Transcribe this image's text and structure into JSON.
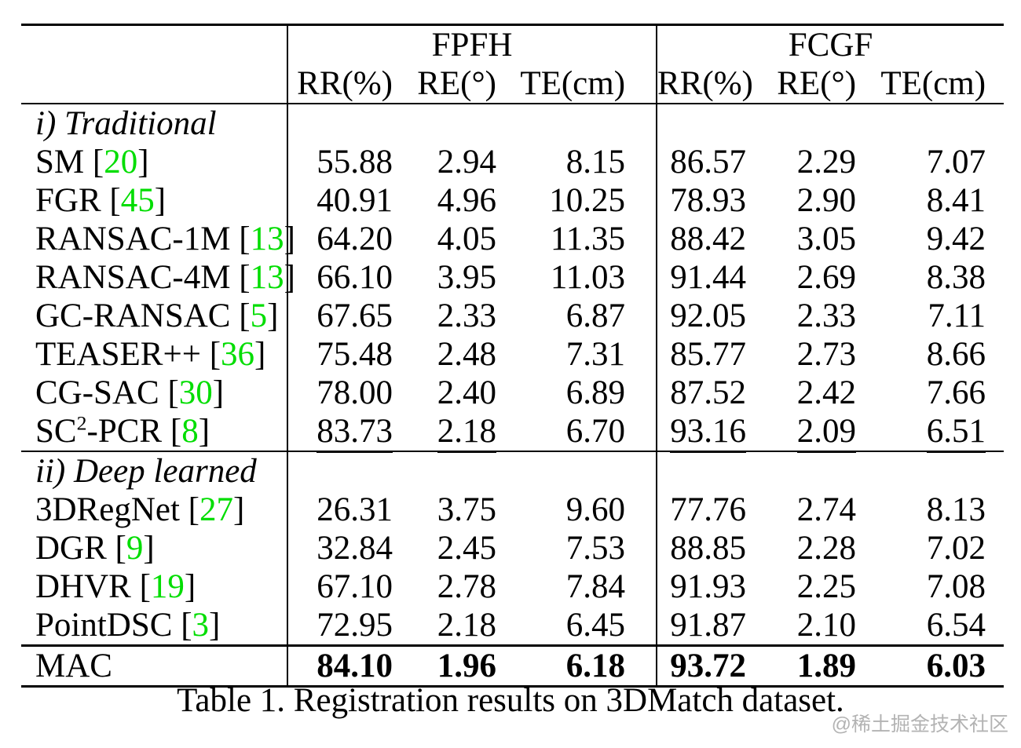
{
  "colors": {
    "citation_green": "#00dd00",
    "watermark_gray": "#b3b3b3",
    "text": "#000000",
    "background": "#ffffff"
  },
  "table": {
    "groups": [
      {
        "label": "FPFH"
      },
      {
        "label": "FCGF"
      }
    ],
    "col_headers": [
      "RR(%)",
      "RE(°)",
      "TE(cm)",
      "RR(%)",
      "RE(°)",
      "TE(cm)"
    ],
    "sections": [
      {
        "header": "i) Traditional",
        "rows": [
          {
            "method": "SM",
            "cite": "20",
            "values": [
              {
                "t": "55.88"
              },
              {
                "t": "2.94"
              },
              {
                "t": "8.15"
              },
              {
                "t": "86.57"
              },
              {
                "t": "2.29"
              },
              {
                "t": "7.07"
              }
            ]
          },
          {
            "method": "FGR",
            "cite": "45",
            "values": [
              {
                "t": "40.91"
              },
              {
                "t": "4.96"
              },
              {
                "t": "10.25"
              },
              {
                "t": "78.93"
              },
              {
                "t": "2.90"
              },
              {
                "t": "8.41"
              }
            ]
          },
          {
            "method": "RANSAC-1M",
            "cite": "13",
            "values": [
              {
                "t": "64.20"
              },
              {
                "t": "4.05"
              },
              {
                "t": "11.35"
              },
              {
                "t": "88.42"
              },
              {
                "t": "3.05"
              },
              {
                "t": "9.42"
              }
            ]
          },
          {
            "method": "RANSAC-4M",
            "cite": "13",
            "values": [
              {
                "t": "66.10"
              },
              {
                "t": "3.95"
              },
              {
                "t": "11.03"
              },
              {
                "t": "91.44"
              },
              {
                "t": "2.69"
              },
              {
                "t": "8.38"
              }
            ]
          },
          {
            "method": "GC-RANSAC",
            "cite": "5",
            "values": [
              {
                "t": "67.65"
              },
              {
                "t": "2.33"
              },
              {
                "t": "6.87"
              },
              {
                "t": "92.05"
              },
              {
                "t": "2.33"
              },
              {
                "t": "7.11"
              }
            ]
          },
          {
            "method": "TEASER++",
            "cite": "36",
            "values": [
              {
                "t": "75.48"
              },
              {
                "t": "2.48"
              },
              {
                "t": "7.31"
              },
              {
                "t": "85.77"
              },
              {
                "t": "2.73"
              },
              {
                "t": "8.66"
              }
            ]
          },
          {
            "method": "CG-SAC",
            "cite": "30",
            "values": [
              {
                "t": "78.00"
              },
              {
                "t": "2.40"
              },
              {
                "t": "6.89"
              },
              {
                "t": "87.52"
              },
              {
                "t": "2.42"
              },
              {
                "t": "7.66"
              }
            ]
          },
          {
            "method": "SC",
            "method_sup": "2",
            "method_rest": "-PCR",
            "cite": "8",
            "values": [
              {
                "t": "83.73",
                "u": true
              },
              {
                "t": "2.18",
                "u": true
              },
              {
                "t": "6.70"
              },
              {
                "t": "93.16",
                "u": true
              },
              {
                "t": "2.09",
                "u": true
              },
              {
                "t": "6.51",
                "u": true
              }
            ]
          }
        ]
      },
      {
        "header": "ii) Deep learned",
        "rows": [
          {
            "method": "3DRegNet",
            "cite": "27",
            "values": [
              {
                "t": "26.31"
              },
              {
                "t": "3.75"
              },
              {
                "t": "9.60"
              },
              {
                "t": "77.76"
              },
              {
                "t": "2.74"
              },
              {
                "t": "8.13"
              }
            ]
          },
          {
            "method": "DGR",
            "cite": "9",
            "values": [
              {
                "t": "32.84"
              },
              {
                "t": "2.45"
              },
              {
                "t": "7.53"
              },
              {
                "t": "88.85"
              },
              {
                "t": "2.28"
              },
              {
                "t": "7.02"
              }
            ]
          },
          {
            "method": "DHVR",
            "cite": "19",
            "values": [
              {
                "t": "67.10"
              },
              {
                "t": "2.78"
              },
              {
                "t": "7.84"
              },
              {
                "t": "91.93"
              },
              {
                "t": "2.25"
              },
              {
                "t": "7.08"
              }
            ]
          },
          {
            "method": "PointDSC",
            "cite": "3",
            "values": [
              {
                "t": "72.95"
              },
              {
                "t": "2.18",
                "u": true
              },
              {
                "t": "6.45",
                "u": true
              },
              {
                "t": "91.87"
              },
              {
                "t": "2.10"
              },
              {
                "t": "6.54"
              }
            ]
          }
        ]
      }
    ],
    "footer": {
      "method": "MAC",
      "bold": true,
      "values": [
        {
          "t": "84.10"
        },
        {
          "t": "1.96"
        },
        {
          "t": "6.18"
        },
        {
          "t": "93.72"
        },
        {
          "t": "1.89"
        },
        {
          "t": "6.03"
        }
      ]
    }
  },
  "caption": "Table 1. Registration results on 3DMatch dataset.",
  "watermark": "@稀土掘金技术社区"
}
